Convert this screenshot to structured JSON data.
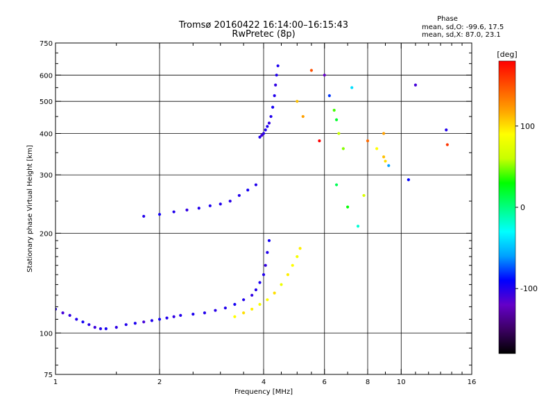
{
  "header": {
    "title_line1": "Tromsø 20160422 16:14:00–16:15:43",
    "title_line2": "RwPretec (8p)"
  },
  "phase_box": {
    "title": "Phase",
    "line1": "mean, sd,O: -99.6, 17.5",
    "line2": "mean, sd,X:  87.0, 23.1"
  },
  "colorbar": {
    "unit_label": "[deg]",
    "tick_labels": [
      "100",
      "0",
      "-100"
    ],
    "tick_values": [
      100,
      0,
      -100
    ],
    "range": [
      -180,
      180
    ],
    "stops": [
      "#000000",
      "#3c0064",
      "#6400c8",
      "#0000ff",
      "#00a0ff",
      "#00ffff",
      "#00ff80",
      "#00ff00",
      "#c8ff00",
      "#ffff00",
      "#ffa000",
      "#ff5000",
      "#ff0000"
    ]
  },
  "chart_data": {
    "type": "scatter",
    "xlabel": "Frequency [MHz]",
    "ylabel": "Stationary phase Virtual Height [km]",
    "x_scale": "log",
    "y_scale": "log",
    "xlim": [
      1,
      16
    ],
    "ylim": [
      75,
      750
    ],
    "x_ticks": [
      1,
      2,
      4,
      6,
      8,
      10,
      16
    ],
    "x_minor_ticks": [
      1.5,
      2.5,
      3,
      3.5,
      4.5,
      5,
      5.5,
      7,
      9,
      11,
      12,
      13,
      14,
      15
    ],
    "y_ticks": [
      75,
      100,
      200,
      300,
      400,
      500,
      600,
      750
    ],
    "y_minor_ticks": [
      80,
      90,
      110,
      120,
      130,
      140,
      150,
      160,
      170,
      180,
      190,
      250,
      350,
      450,
      550,
      650,
      700
    ],
    "v_grid": [
      1,
      2,
      4,
      6,
      8,
      10
    ],
    "h_grid": [
      100,
      200,
      300,
      400,
      500,
      600
    ],
    "grid": true,
    "series": [
      {
        "trace": "o_mode_low",
        "points": [
          [
            1.0,
            118,
            -100
          ],
          [
            1.05,
            115,
            -110
          ],
          [
            1.1,
            113,
            -105
          ],
          [
            1.15,
            110,
            -100
          ],
          [
            1.2,
            108,
            -95
          ],
          [
            1.25,
            106,
            -102
          ],
          [
            1.3,
            104,
            -108
          ],
          [
            1.35,
            103,
            -100
          ],
          [
            1.4,
            103,
            -96
          ],
          [
            1.5,
            104,
            -104
          ],
          [
            1.6,
            106,
            -100
          ],
          [
            1.7,
            107,
            -98
          ],
          [
            1.8,
            108,
            -110
          ],
          [
            1.9,
            109,
            -100
          ],
          [
            2.0,
            110,
            -95
          ],
          [
            2.1,
            111,
            -100
          ],
          [
            2.2,
            112,
            -105
          ],
          [
            2.3,
            113,
            -100
          ],
          [
            2.5,
            114,
            -98
          ],
          [
            2.7,
            115,
            -100
          ],
          [
            2.9,
            117,
            -102
          ],
          [
            3.1,
            119,
            -100
          ],
          [
            3.3,
            122,
            -96
          ],
          [
            3.5,
            126,
            -100
          ],
          [
            3.7,
            130,
            -104
          ],
          [
            3.8,
            135,
            -100
          ],
          [
            3.9,
            142,
            -98
          ],
          [
            4.0,
            150,
            -100
          ],
          [
            4.05,
            160,
            -105
          ],
          [
            4.1,
            175,
            -100
          ],
          [
            4.15,
            190,
            -95
          ]
        ]
      },
      {
        "trace": "o_mode_high",
        "points": [
          [
            3.9,
            390,
            -100
          ],
          [
            3.95,
            395,
            -110
          ],
          [
            4.0,
            400,
            -102
          ],
          [
            4.05,
            410,
            -100
          ],
          [
            4.1,
            420,
            -98
          ],
          [
            4.15,
            430,
            -105
          ],
          [
            4.2,
            450,
            -100
          ],
          [
            4.25,
            480,
            -96
          ],
          [
            4.3,
            520,
            -100
          ],
          [
            4.33,
            560,
            -104
          ],
          [
            4.36,
            600,
            -100
          ],
          [
            4.4,
            640,
            -98
          ]
        ]
      },
      {
        "trace": "x_mode_low",
        "points": [
          [
            3.3,
            112,
            90
          ],
          [
            3.5,
            115,
            100
          ],
          [
            3.7,
            118,
            95
          ],
          [
            3.9,
            122,
            85
          ],
          [
            4.1,
            126,
            90
          ],
          [
            4.3,
            132,
            100
          ],
          [
            4.5,
            140,
            80
          ],
          [
            4.7,
            150,
            95
          ],
          [
            4.85,
            160,
            90
          ],
          [
            5.0,
            170,
            85
          ],
          [
            5.1,
            180,
            95
          ]
        ]
      },
      {
        "trace": "x_mode_high",
        "points": [
          [
            6.4,
            470,
            40
          ],
          [
            6.5,
            440,
            20
          ],
          [
            6.6,
            400,
            60
          ],
          [
            6.8,
            360,
            50
          ],
          [
            8.9,
            400,
            120
          ],
          [
            8.9,
            340,
            110
          ],
          [
            9.0,
            330,
            100
          ],
          [
            8.5,
            360,
            90
          ],
          [
            5.0,
            500,
            110
          ],
          [
            5.2,
            450,
            120
          ]
        ]
      },
      {
        "trace": "e_layer",
        "points": [
          [
            1.8,
            225,
            -100
          ],
          [
            2.0,
            228,
            -95
          ],
          [
            2.2,
            232,
            -100
          ],
          [
            2.4,
            235,
            -105
          ],
          [
            2.6,
            238,
            -100
          ],
          [
            2.8,
            242,
            -98
          ],
          [
            3.0,
            245,
            -100
          ],
          [
            3.2,
            250,
            -102
          ],
          [
            3.4,
            260,
            -100
          ],
          [
            3.6,
            270,
            -96
          ],
          [
            3.8,
            280,
            -100
          ]
        ]
      },
      {
        "trace": "scatter_misc",
        "points": [
          [
            6.0,
            600,
            -120
          ],
          [
            6.2,
            520,
            -80
          ],
          [
            7.2,
            550,
            -40
          ],
          [
            7.5,
            210,
            -20
          ],
          [
            8.0,
            380,
            140
          ],
          [
            10.5,
            290,
            -90
          ],
          [
            13.5,
            410,
            -100
          ],
          [
            13.6,
            370,
            160
          ],
          [
            6.5,
            280,
            10
          ],
          [
            7.0,
            240,
            30
          ],
          [
            9.2,
            320,
            -60
          ],
          [
            11.0,
            560,
            -110
          ],
          [
            5.5,
            620,
            150
          ],
          [
            5.8,
            380,
            180
          ],
          [
            7.8,
            260,
            70
          ]
        ]
      }
    ]
  }
}
